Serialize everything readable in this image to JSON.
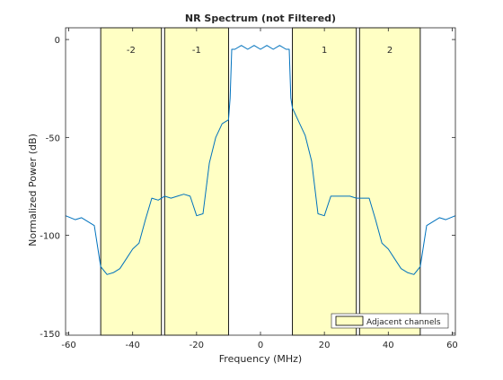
{
  "chart_data": {
    "type": "line",
    "title": "NR Spectrum (not Filtered)",
    "xlabel": "Frequency (MHz)",
    "ylabel": "Normalized Power (dB)",
    "xlim": [
      -61,
      61
    ],
    "ylim": [
      -151,
      6
    ],
    "xticks": [
      -60,
      -40,
      -20,
      0,
      20,
      40,
      60
    ],
    "yticks": [
      -150,
      -100,
      -50,
      0
    ],
    "grid": false,
    "legend": {
      "location": "bottom-right",
      "entries": [
        "Adjacent channels"
      ]
    },
    "adjacent_channels": [
      {
        "label": "-2",
        "x_start": -50,
        "x_end": -31
      },
      {
        "label": "-1",
        "x_start": -30,
        "x_end": -10
      },
      {
        "label": "1",
        "x_start": 10,
        "x_end": 30
      },
      {
        "label": "2",
        "x_start": 31,
        "x_end": 50
      }
    ],
    "series": [
      {
        "color": "#0072bd",
        "x": [
          -61,
          -58,
          -56,
          -54,
          -52,
          -50,
          -48,
          -46,
          -44,
          -42,
          -40,
          -38,
          -36,
          -34,
          -32,
          -30,
          -28,
          -26,
          -24,
          -22,
          -20,
          -18,
          -16,
          -14,
          -12,
          -10,
          -9.5,
          -9,
          -8,
          -6,
          -4,
          -2,
          0,
          2,
          4,
          6,
          8,
          9,
          9.5,
          10,
          12,
          14,
          16,
          18,
          20,
          22,
          24,
          26,
          28,
          30,
          32,
          34,
          36,
          38,
          40,
          42,
          44,
          46,
          48,
          50,
          52,
          54,
          56,
          58,
          61
        ],
        "y": [
          -90,
          -92,
          -91,
          -93,
          -95,
          -116,
          -120,
          -119,
          -117,
          -112,
          -107,
          -104,
          -92,
          -81,
          -82,
          -80,
          -81,
          -80,
          -79,
          -80,
          -90,
          -89,
          -63,
          -50,
          -43,
          -41,
          -30,
          -5,
          -5,
          -3,
          -5,
          -3,
          -5,
          -3,
          -5,
          -3,
          -5,
          -5,
          -30,
          -35,
          -42,
          -49,
          -62,
          -89,
          -90,
          -80,
          -80,
          -80,
          -80,
          -81,
          -81,
          -81,
          -92,
          -104,
          -107,
          -112,
          -117,
          -119,
          -120,
          -116,
          -95,
          -93,
          -91,
          -92,
          -90
        ]
      }
    ]
  }
}
